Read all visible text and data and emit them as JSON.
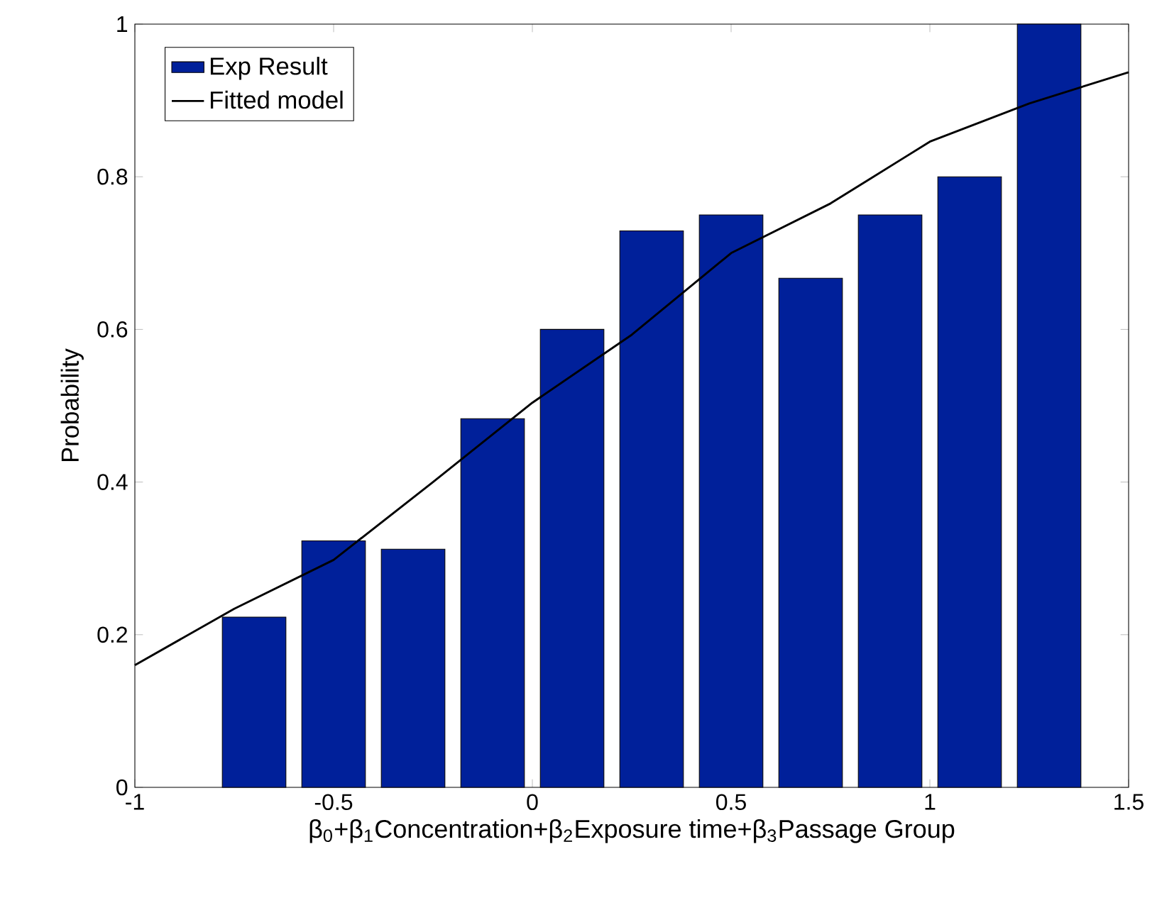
{
  "chart_data": {
    "type": "bar",
    "xlabel": "β$_{0}$+β$_{1}$Concentration+β$_{2}$Exposure time+β$_{3}$Passage Group",
    "ylabel": "Probability",
    "xlim": [
      -1,
      1.5
    ],
    "xticks": [
      -1,
      -0.5,
      0,
      0.5,
      1,
      1.5
    ],
    "ylim": [
      0,
      1
    ],
    "yticks": [
      0,
      0.2,
      0.4,
      0.6,
      0.8,
      1
    ],
    "legend": "top left",
    "series": [
      {
        "name": "Exp Result",
        "color": "#00209a",
        "x": [
          -0.7,
          -0.5,
          -0.3,
          -0.1,
          0.1,
          0.3,
          0.5,
          0.7,
          0.9,
          1.1,
          1.3
        ],
        "values": [
          0.223,
          0.323,
          0.312,
          0.483,
          0.6,
          0.729,
          0.75,
          0.667,
          0.75,
          0.8,
          1
        ]
      },
      {
        "name": "Fitted model",
        "type": "line",
        "color": "#000000",
        "x": [
          -1,
          -0.75,
          -0.5,
          -0.25,
          0,
          0.25,
          0.5,
          0.75,
          1,
          1.25,
          1.5
        ],
        "values": [
          0.16,
          0.234,
          0.298,
          0.4,
          0.504,
          0.593,
          0.7,
          0.765,
          0.846,
          0.896,
          0.937
        ]
      }
    ]
  }
}
